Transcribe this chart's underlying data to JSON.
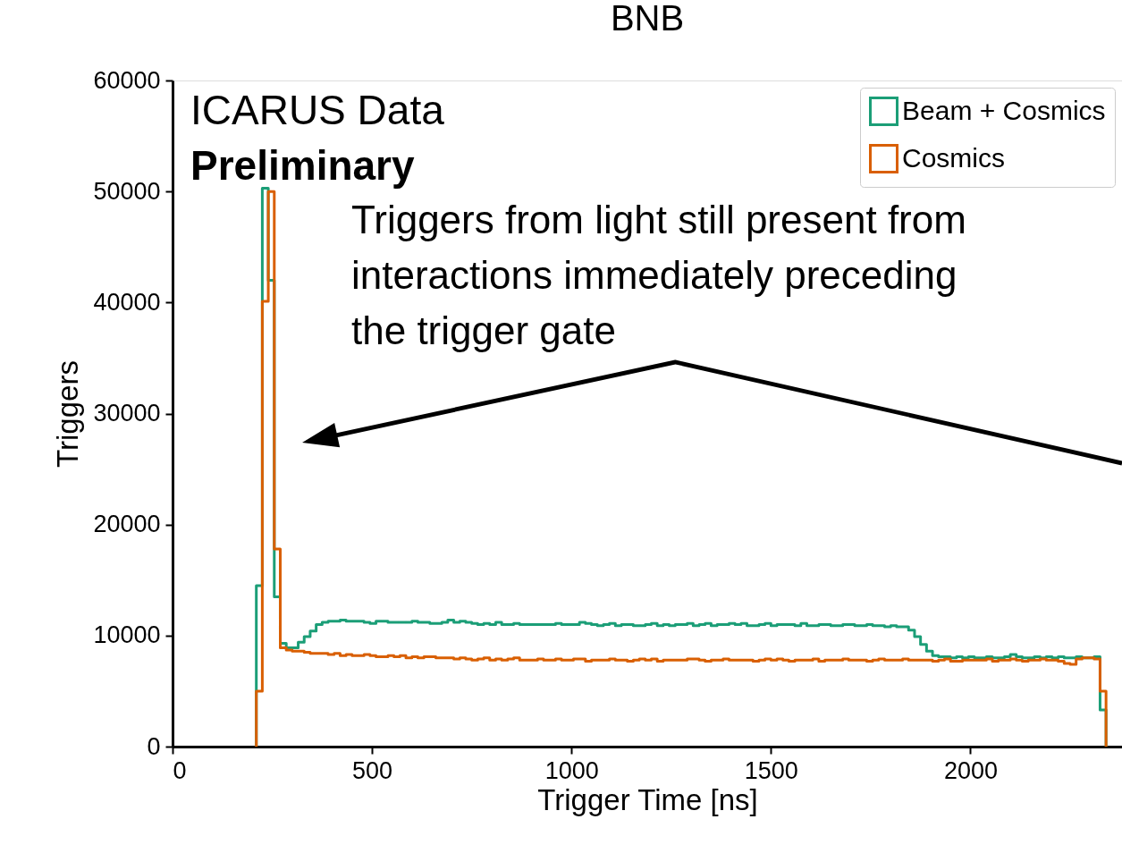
{
  "chart_data": {
    "type": "histogram",
    "title": "BNB",
    "xlabel": "Trigger Time [ns]",
    "ylabel": "Triggers",
    "annotations": [
      "ICARUS Data",
      "Preliminary",
      "Triggers from light still present from interactions immediately preceding the trigger gate"
    ],
    "xlim": [
      0,
      2380
    ],
    "xticks": [
      0,
      500,
      1000,
      1500,
      2000
    ],
    "ylim": [
      0,
      60000
    ],
    "yticks": [
      0,
      10000,
      20000,
      30000,
      40000,
      50000,
      60000
    ],
    "grid": false,
    "legend": "top right",
    "line_style": "solid",
    "bins": [
      210,
      225,
      240,
      255,
      270,
      285,
      300,
      315,
      330,
      345,
      360,
      375,
      390,
      405,
      420,
      435,
      450,
      465,
      480,
      495,
      510,
      525,
      540,
      555,
      570,
      585,
      600,
      615,
      630,
      645,
      660,
      675,
      690,
      705,
      720,
      735,
      750,
      765,
      780,
      795,
      810,
      825,
      840,
      855,
      870,
      885,
      900,
      915,
      930,
      945,
      960,
      975,
      990,
      1005,
      1020,
      1035,
      1050,
      1065,
      1080,
      1095,
      1110,
      1125,
      1140,
      1155,
      1170,
      1185,
      1200,
      1215,
      1230,
      1245,
      1260,
      1275,
      1290,
      1305,
      1320,
      1335,
      1350,
      1365,
      1380,
      1395,
      1410,
      1425,
      1440,
      1455,
      1470,
      1485,
      1500,
      1515,
      1530,
      1545,
      1560,
      1575,
      1590,
      1605,
      1620,
      1635,
      1650,
      1665,
      1680,
      1695,
      1710,
      1725,
      1740,
      1755,
      1770,
      1785,
      1800,
      1815,
      1830,
      1845,
      1860,
      1875,
      1890,
      1905,
      1920,
      1935,
      1950,
      1965,
      1980,
      1995,
      2010,
      2025,
      2040,
      2055,
      2070,
      2085,
      2100,
      2115,
      2130,
      2145,
      2160,
      2175,
      2190,
      2205,
      2220,
      2235,
      2250,
      2265,
      2280,
      2295,
      2310,
      2325,
      2340
    ],
    "series": [
      {
        "name": "Beam + Cosmics",
        "color": "#1b9e77",
        "values": [
          14500,
          50300,
          42000,
          13500,
          9300,
          8900,
          8900,
          9400,
          9900,
          10400,
          11000,
          11200,
          11300,
          11300,
          11400,
          11300,
          11300,
          11300,
          11200,
          11100,
          11300,
          11300,
          11200,
          11200,
          11200,
          11200,
          11300,
          11200,
          11200,
          11100,
          11100,
          11200,
          11400,
          11200,
          11300,
          11200,
          11100,
          11000,
          11100,
          11000,
          11200,
          11000,
          11000,
          11100,
          11000,
          11000,
          11000,
          11000,
          11000,
          11000,
          11100,
          11000,
          11000,
          11000,
          11200,
          11100,
          11000,
          10900,
          11000,
          11100,
          10900,
          11000,
          11000,
          10900,
          10900,
          11000,
          11100,
          10900,
          11000,
          10900,
          11000,
          11000,
          11100,
          10900,
          11000,
          11100,
          10900,
          11000,
          11000,
          11100,
          11000,
          11100,
          10900,
          10900,
          11000,
          11100,
          10900,
          11000,
          11000,
          11000,
          10900,
          11100,
          10900,
          10900,
          11000,
          11000,
          10900,
          10900,
          11000,
          11000,
          10900,
          10900,
          11000,
          10900,
          10900,
          10800,
          10900,
          10800,
          10800,
          10500,
          9900,
          9200,
          8600,
          8200,
          8100,
          8100,
          8000,
          8100,
          8000,
          8100,
          8000,
          8000,
          8100,
          8000,
          8000,
          8100,
          8300,
          8100,
          8000,
          8000,
          8100,
          8000,
          8100,
          8000,
          8100,
          8000,
          8000,
          8100,
          8000,
          8000,
          8100,
          3300
        ]
      },
      {
        "name": "Cosmics",
        "color": "#d95f02",
        "values": [
          5000,
          40100,
          50000,
          17800,
          8900,
          8700,
          8600,
          8600,
          8500,
          8400,
          8400,
          8400,
          8300,
          8400,
          8200,
          8300,
          8200,
          8200,
          8300,
          8200,
          8100,
          8100,
          8200,
          8100,
          8200,
          8000,
          8100,
          8000,
          8100,
          8100,
          8000,
          8000,
          8000,
          7900,
          8000,
          7900,
          7800,
          7900,
          8000,
          7800,
          7900,
          7800,
          7900,
          8000,
          7800,
          7800,
          7800,
          7900,
          7800,
          7800,
          7900,
          7800,
          7800,
          7900,
          7900,
          7700,
          7800,
          7800,
          7800,
          7900,
          7800,
          7800,
          7700,
          7800,
          7900,
          7800,
          7900,
          7700,
          7800,
          7800,
          7800,
          7800,
          7900,
          7900,
          7800,
          7700,
          7800,
          7800,
          7900,
          7800,
          7800,
          7800,
          7800,
          7700,
          7800,
          7900,
          7800,
          7900,
          7800,
          7700,
          7800,
          7800,
          7800,
          7900,
          7700,
          7800,
          7800,
          7800,
          7900,
          7800,
          7800,
          7800,
          7700,
          7800,
          7900,
          7800,
          7800,
          7800,
          7900,
          7800,
          7800,
          7800,
          7800,
          7700,
          7800,
          7900,
          7700,
          7700,
          7800,
          7800,
          7800,
          7800,
          7900,
          7700,
          7800,
          7800,
          7900,
          7800,
          7700,
          7800,
          7800,
          7900,
          7800,
          7800,
          7700,
          7500,
          7400,
          7900,
          8000,
          8000,
          7900,
          5000
        ]
      }
    ]
  }
}
